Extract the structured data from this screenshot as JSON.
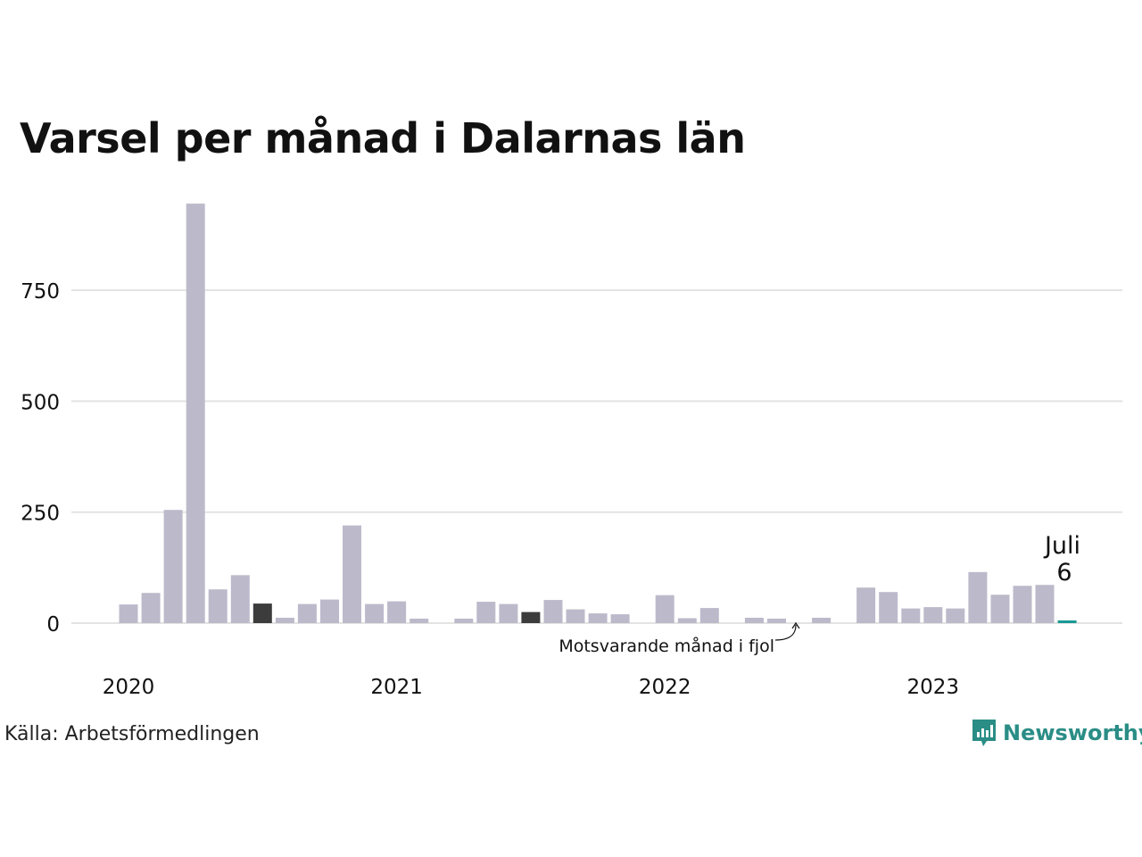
{
  "title": "Varsel per månad i Dalarnas län",
  "source": "Källa: Arbetsförmedlingen",
  "brand": {
    "name": "Newsworthy",
    "color": "#2a8d86",
    "icon": "newsworthy-logo-icon"
  },
  "annotations": {
    "latest_month": "Juli",
    "latest_value": "6",
    "last_year_label": "Motsvarande månad i fjol"
  },
  "colors": {
    "bar": "#bcbaca",
    "highlight": "#3c3c3c",
    "latest": "#1a9a95",
    "grid": "#e3e3e3",
    "text": "#111111"
  },
  "chart_data": {
    "type": "bar",
    "title": "Varsel per månad i Dalarnas län",
    "xlabel": "",
    "ylabel": "",
    "x_ticks": [
      "2020",
      "2021",
      "2022",
      "2023"
    ],
    "y_ticks": [
      0,
      250,
      500,
      750
    ],
    "ylim": [
      0,
      950
    ],
    "grid": true,
    "start_month": "2020-01",
    "highlight_months": [
      "2020-07",
      "2021-07"
    ],
    "latest_month": "2023-07",
    "values": [
      42,
      68,
      255,
      945,
      76,
      108,
      44,
      12,
      43,
      53,
      220,
      43,
      49,
      10,
      0,
      10,
      48,
      43,
      25,
      52,
      31,
      22,
      20,
      0,
      63,
      11,
      34,
      0,
      12,
      10,
      0,
      12,
      0,
      80,
      70,
      33,
      36,
      33,
      115,
      64,
      84,
      86,
      6
    ]
  }
}
